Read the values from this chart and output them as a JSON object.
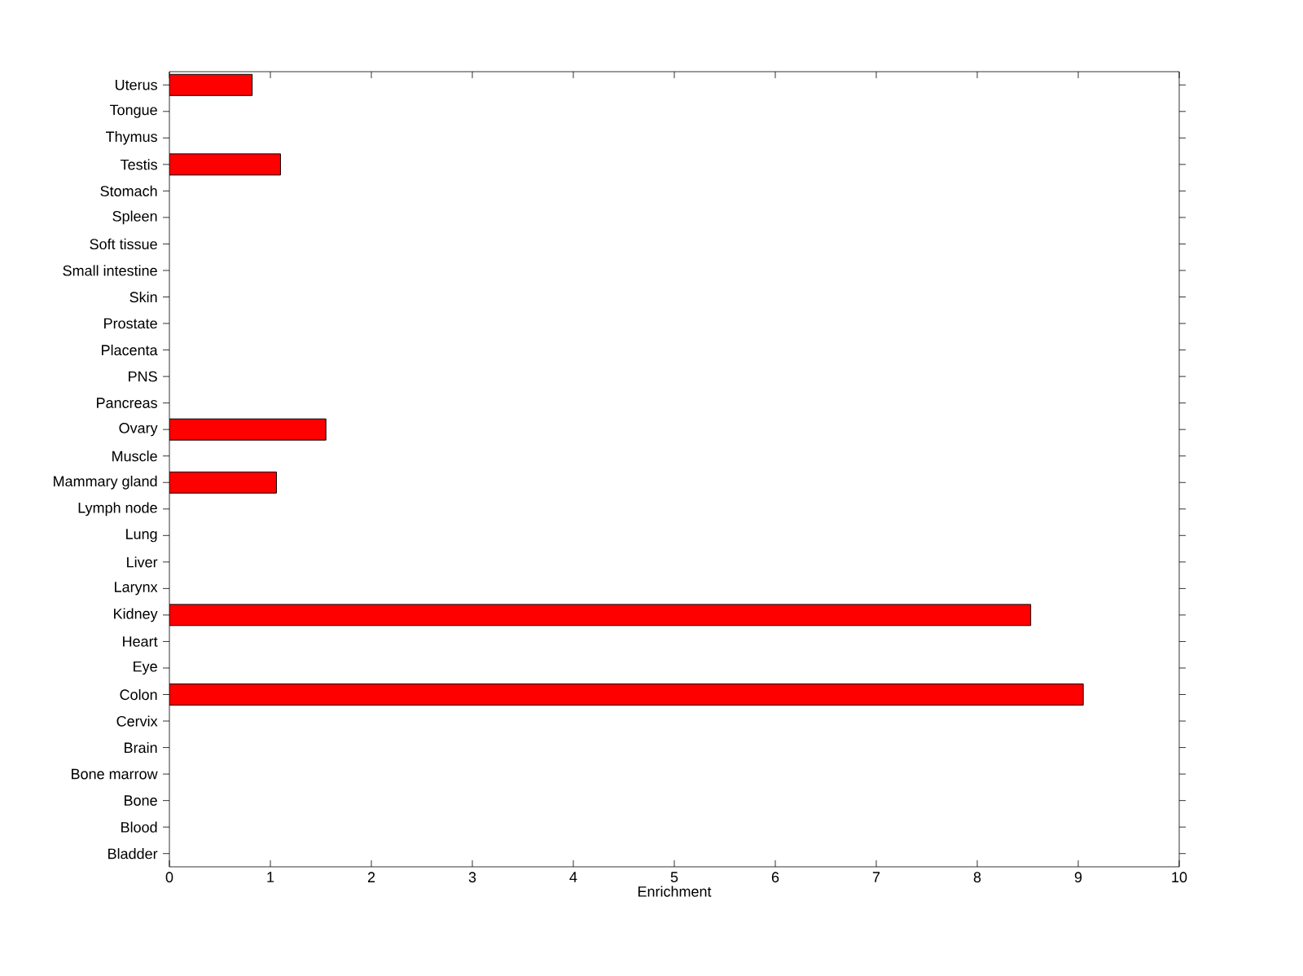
{
  "chart_data": {
    "type": "bar",
    "orientation": "horizontal",
    "xlabel": "Enrichment",
    "categories": [
      "Uterus",
      "Tongue",
      "Thymus",
      "Testis",
      "Stomach",
      "Spleen",
      "Soft tissue",
      "Small intestine",
      "Skin",
      "Prostate",
      "Placenta",
      "PNS",
      "Pancreas",
      "Ovary",
      "Muscle",
      "Mammary gland",
      "Lymph node",
      "Lung",
      "Liver",
      "Larynx",
      "Kidney",
      "Heart",
      "Eye",
      "Colon",
      "Cervix",
      "Brain",
      "Bone marrow",
      "Bone",
      "Blood",
      "Bladder"
    ],
    "values": [
      0.82,
      0,
      0,
      1.1,
      0,
      0,
      0,
      0,
      0,
      0,
      0,
      0,
      0,
      1.55,
      0,
      1.06,
      0,
      0,
      0,
      0,
      8.53,
      0,
      0,
      9.05,
      0,
      0,
      0,
      0,
      0,
      0
    ],
    "color": "#ff0000",
    "xlim": [
      0,
      10
    ],
    "xticks": [
      0,
      1,
      2,
      3,
      4,
      5,
      6,
      7,
      8,
      9,
      10
    ],
    "grid": false
  }
}
